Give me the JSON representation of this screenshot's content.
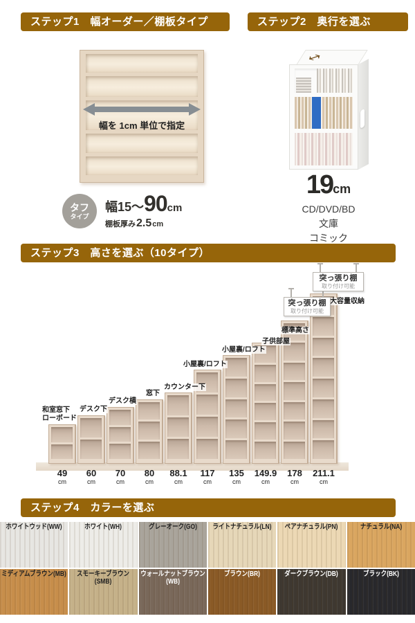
{
  "step1": {
    "title": "ステップ1　幅オーダー／棚板タイプ",
    "arrow_label": "幅を 1cm 単位で指定",
    "badge": {
      "line1": "タフ",
      "line2": "タイプ"
    },
    "width_spec": {
      "prefix": "幅15～",
      "value": "90",
      "unit": "cm"
    },
    "thickness_spec": {
      "label": "棚板厚み",
      "value": "2.5",
      "unit": "cm"
    }
  },
  "step2": {
    "title": "ステップ2　奥行を選ぶ",
    "depth": {
      "value": "19",
      "unit": "cm"
    },
    "media_types": [
      "CD/DVD/BD",
      "文庫",
      "コミック"
    ]
  },
  "step3": {
    "title": "ステップ3　高さを選ぶ（10タイプ）",
    "tension_shelf_note": {
      "line1": "突っ張り棚",
      "line2": "取り付け可能"
    },
    "shelves": [
      {
        "height_cm": "49",
        "unit": "cm",
        "label": "和室窓下\nローボード"
      },
      {
        "height_cm": "60",
        "unit": "cm",
        "label": "デスク下"
      },
      {
        "height_cm": "70",
        "unit": "cm",
        "label": "デスク横"
      },
      {
        "height_cm": "80",
        "unit": "cm",
        "label": "窓下"
      },
      {
        "height_cm": "88.1",
        "unit": "cm",
        "label": "カウンター下"
      },
      {
        "height_cm": "117",
        "unit": "cm",
        "label": "小屋裏/ロフト"
      },
      {
        "height_cm": "135",
        "unit": "cm",
        "label": "小屋裏/ロフト"
      },
      {
        "height_cm": "149.9",
        "unit": "cm",
        "label": "子供部屋"
      },
      {
        "height_cm": "178",
        "unit": "cm",
        "label": "標準高さ"
      },
      {
        "height_cm": "211.1",
        "unit": "cm",
        "label": "大容量収納"
      }
    ]
  },
  "step4": {
    "title": "ステップ4　カラーを選ぶ",
    "colors": [
      {
        "label": "ホワイトウッド(WW)",
        "hex": "#e7e6e2",
        "text_color": "#222222"
      },
      {
        "label": "ホワイト(WH)",
        "hex": "#edece8",
        "text_color": "#222222"
      },
      {
        "label": "グレーオーク(GO)",
        "hex": "#a9a49b",
        "text_color": "#222222"
      },
      {
        "label": "ライトナチュラル(LN)",
        "hex": "#e6d7b8",
        "text_color": "#222222"
      },
      {
        "label": "ペアナチュラル(PN)",
        "hex": "#ecd8b4",
        "text_color": "#222222"
      },
      {
        "label": "ナチュラル(NA)",
        "hex": "#daa660",
        "text_color": "#222222"
      },
      {
        "label": "ミディアムブラウン(MB)",
        "hex": "#c78e4b",
        "text_color": "#222222"
      },
      {
        "label": "スモーキーブラウン\n(SMB)",
        "hex": "#c5b189",
        "text_color": "#222222"
      },
      {
        "label": "ウォールナットブラウン\n(WB)",
        "hex": "#79685a",
        "text_color": "#ffffff"
      },
      {
        "label": "ブラウン(BR)",
        "hex": "#8a5a26",
        "text_color": "#ffffff"
      },
      {
        "label": "ダークブラウン(DB)",
        "hex": "#3e3831",
        "text_color": "#ffffff"
      },
      {
        "label": "ブラック(BK)",
        "hex": "#28282c",
        "text_color": "#ffffff"
      }
    ]
  }
}
